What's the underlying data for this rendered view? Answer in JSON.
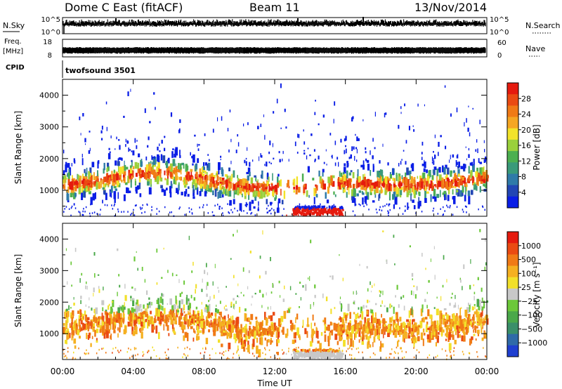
{
  "header": {
    "station": "Dome C East (fitACF)",
    "beam": "Beam 11",
    "date": "13/Nov/2014"
  },
  "top_panels": {
    "nsky_label": "N.Sky",
    "nsky_ticks": [
      "10^5",
      "10^0"
    ],
    "nsearch_label": "N.Search",
    "nsearch_ticks": [
      "10^5",
      "10^0"
    ],
    "freq_label_1": "Freq.",
    "freq_label_2": "[MHz]",
    "freq_ticks": [
      "18",
      "8"
    ],
    "nave_label": "Nave",
    "nave_ticks": [
      "60",
      "0"
    ],
    "cpid_label": "CPID",
    "cpid_value": "twofsound 3501"
  },
  "chart_data": [
    {
      "type": "heatmap",
      "title": "",
      "xlabel": "",
      "ylabel": "Slant Range [km]",
      "x_ticks": [
        "00:00",
        "04:00",
        "08:00",
        "12:00",
        "16:00",
        "20:00",
        "00:00"
      ],
      "xlim_hours": [
        0,
        24
      ],
      "y_ticks": [
        1000,
        2000,
        3000,
        4000
      ],
      "ylim": [
        180,
        4500
      ],
      "colorbar": {
        "label": "Power [dB]",
        "ticks": [
          "4",
          "8",
          "12",
          "16",
          "20",
          "24",
          "28"
        ],
        "colors": [
          "#0a1ee6",
          "#2246b4",
          "#2f7aa8",
          "#3a9a7a",
          "#4caf50",
          "#9ad03c",
          "#f2e32a",
          "#f5a623",
          "#f07a16",
          "#ea4a12",
          "#e51a0e"
        ]
      }
    },
    {
      "type": "heatmap",
      "title": "",
      "xlabel": "Time UT",
      "ylabel": "Slant Range [km]",
      "x_ticks": [
        "00:00",
        "04:00",
        "08:00",
        "12:00",
        "16:00",
        "20:00",
        "00:00"
      ],
      "xlim_hours": [
        0,
        24
      ],
      "y_ticks": [
        1000,
        2000,
        3000,
        4000
      ],
      "ylim": [
        180,
        4500
      ],
      "colorbar": {
        "label": "Velocity [m s⁻¹]",
        "ticks": [
          "1000",
          "500",
          "100",
          "25",
          "−25",
          "−100",
          "−500",
          "−1000"
        ],
        "colors": [
          "#1f3fd0",
          "#2f6aa8",
          "#3a8f6a",
          "#4aa84a",
          "#6cc83a",
          "#c8c8c8",
          "#f2e02a",
          "#f5b021",
          "#f07a16",
          "#ea4a12",
          "#e51a0e"
        ]
      }
    }
  ]
}
